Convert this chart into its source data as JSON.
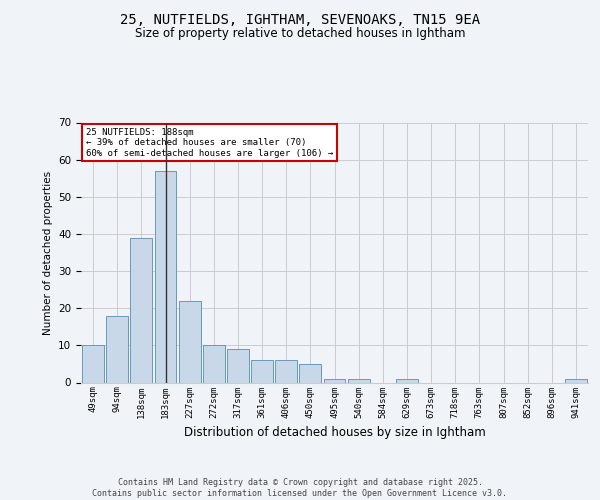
{
  "title_line1": "25, NUTFIELDS, IGHTHAM, SEVENOAKS, TN15 9EA",
  "title_line2": "Size of property relative to detached houses in Ightham",
  "xlabel": "Distribution of detached houses by size in Ightham",
  "ylabel": "Number of detached properties",
  "categories": [
    "49sqm",
    "94sqm",
    "138sqm",
    "183sqm",
    "227sqm",
    "272sqm",
    "317sqm",
    "361sqm",
    "406sqm",
    "450sqm",
    "495sqm",
    "540sqm",
    "584sqm",
    "629sqm",
    "673sqm",
    "718sqm",
    "763sqm",
    "807sqm",
    "852sqm",
    "896sqm",
    "941sqm"
  ],
  "values": [
    10,
    18,
    39,
    57,
    22,
    10,
    9,
    6,
    6,
    5,
    1,
    1,
    0,
    1,
    0,
    0,
    0,
    0,
    0,
    0,
    1
  ],
  "bar_color": "#c8d8e8",
  "bar_edge_color": "#6699bb",
  "highlight_bar_index": 3,
  "highlight_line_color": "#333333",
  "ylim": [
    0,
    70
  ],
  "yticks": [
    0,
    10,
    20,
    30,
    40,
    50,
    60,
    70
  ],
  "annotation_text": "25 NUTFIELDS: 188sqm\n← 39% of detached houses are smaller (70)\n60% of semi-detached houses are larger (106) →",
  "annotation_box_color": "#ffffff",
  "annotation_box_edge": "#cc0000",
  "footer_text": "Contains HM Land Registry data © Crown copyright and database right 2025.\nContains public sector information licensed under the Open Government Licence v3.0.",
  "background_color": "#f0f4f8",
  "plot_background_color": "#f0f4f8",
  "grid_color": "#cccccc"
}
